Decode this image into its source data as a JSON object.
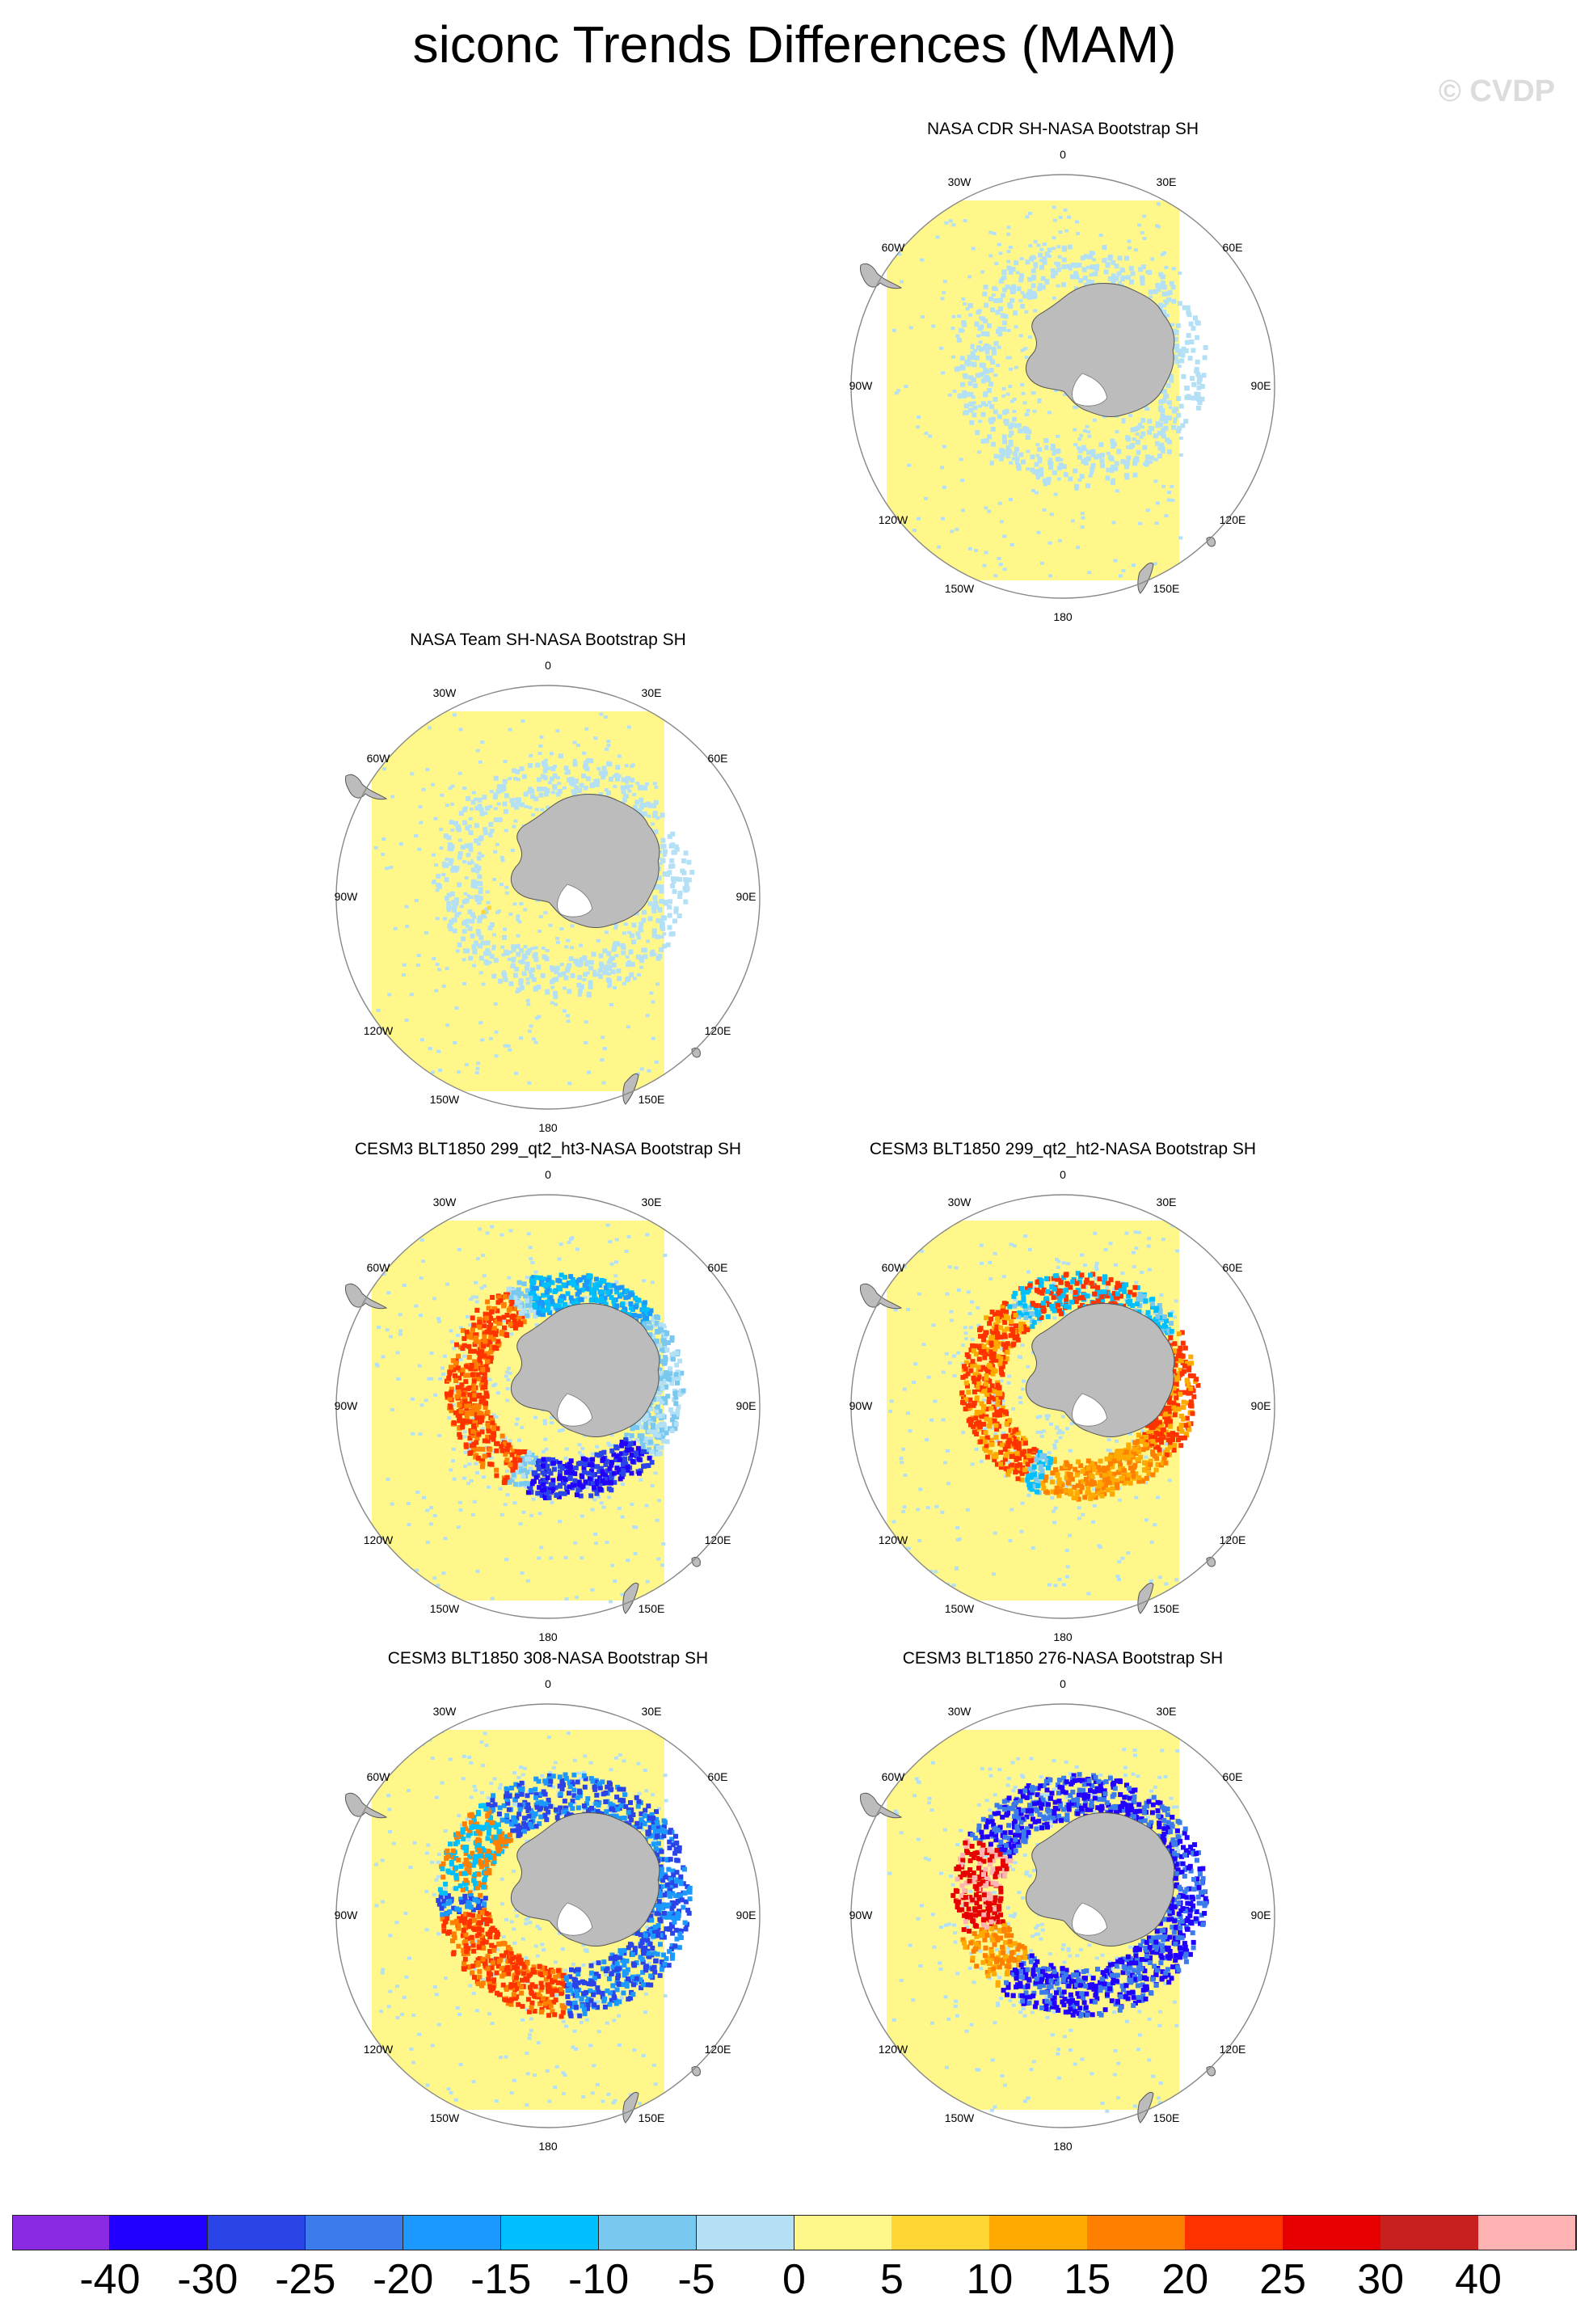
{
  "title": "siconc Trends Differences (MAM)",
  "watermark": "© CVDP",
  "panels": [
    {
      "title": "NASA CDR SH-NASA Bootstrap SH",
      "pattern": "obs1"
    },
    {
      "title": "NASA Team SH-NASA Bootstrap SH",
      "pattern": "obs2"
    },
    {
      "title": "CESM3 BLT1850 299_qt2_ht3-NASA Bootstrap SH",
      "pattern": "m1"
    },
    {
      "title": "CESM3 BLT1850 299_qt2_ht2-NASA Bootstrap SH",
      "pattern": "m2"
    },
    {
      "title": "CESM3 BLT1850 308-NASA Bootstrap SH",
      "pattern": "m3"
    },
    {
      "title": "CESM3 BLT1850 276-NASA Bootstrap SH",
      "pattern": "m4"
    }
  ],
  "map_labels": {
    "top": "0",
    "bottom": "180",
    "left_upper": "30W",
    "right_upper": "30E",
    "left_mid_upper": "60W",
    "right_mid_upper": "60E",
    "left_mid": "90W",
    "right_mid": "90E",
    "left_mid_lower": "120W",
    "right_mid_lower": "120E",
    "left_lower": "150W",
    "right_lower": "150E"
  },
  "colorbar": {
    "colors": [
      "#8a2be2",
      "#2200ff",
      "#2a44e8",
      "#3b7beb",
      "#1c99ff",
      "#00bfff",
      "#78c8f0",
      "#b4e0f5",
      "#fff78a",
      "#ffd633",
      "#ffaa00",
      "#ff7f00",
      "#ff3300",
      "#e60000",
      "#c8201e",
      "#ffb3b3"
    ],
    "ticks": [
      "-40",
      "-30",
      "-25",
      "-20",
      "-15",
      "-10",
      "-5",
      "0",
      "5",
      "10",
      "15",
      "20",
      "25",
      "30",
      "40"
    ]
  },
  "colors": {
    "land": "#bcbcbc",
    "ocean_fill": "#fff78a",
    "light_blue": "#b4e0f5"
  }
}
